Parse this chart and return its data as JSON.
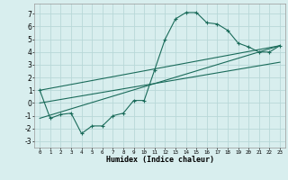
{
  "xlabel": "Humidex (Indice chaleur)",
  "background_color": "#d8eeee",
  "grid_color": "#b8d8d8",
  "line_color": "#1a6b5a",
  "xlim": [
    -0.5,
    23.5
  ],
  "ylim": [
    -3.5,
    7.8
  ],
  "xticks": [
    0,
    1,
    2,
    3,
    4,
    5,
    6,
    7,
    8,
    9,
    10,
    11,
    12,
    13,
    14,
    15,
    16,
    17,
    18,
    19,
    20,
    21,
    22,
    23
  ],
  "xticklabels": [
    "0",
    "1",
    "2",
    "3",
    "4",
    "5",
    "6",
    "7",
    "8",
    "9",
    "10",
    "11",
    "12",
    "13",
    "14",
    "15",
    "16",
    "17",
    "18",
    "19",
    "20",
    "21",
    "22",
    "23"
  ],
  "yticks": [
    -3,
    -2,
    -1,
    0,
    1,
    2,
    3,
    4,
    5,
    6,
    7
  ],
  "curve1_x": [
    0,
    1,
    2,
    3,
    4,
    5,
    6,
    7,
    8,
    9,
    10,
    11,
    12,
    13,
    14,
    15,
    16,
    17,
    18,
    19,
    20,
    21,
    22,
    23
  ],
  "curve1_y": [
    1.0,
    -1.2,
    -0.9,
    -0.8,
    -2.4,
    -1.8,
    -1.8,
    -1.0,
    -0.8,
    0.2,
    0.2,
    2.6,
    5.0,
    6.6,
    7.1,
    7.1,
    6.3,
    6.2,
    5.7,
    4.7,
    4.4,
    4.0,
    4.0,
    4.5
  ],
  "line1_x": [
    0,
    23
  ],
  "line1_y": [
    1.0,
    4.5
  ],
  "line2_x": [
    0,
    23
  ],
  "line2_y": [
    -1.2,
    4.5
  ],
  "line3_x": [
    0,
    23
  ],
  "line3_y": [
    0.0,
    3.2
  ]
}
